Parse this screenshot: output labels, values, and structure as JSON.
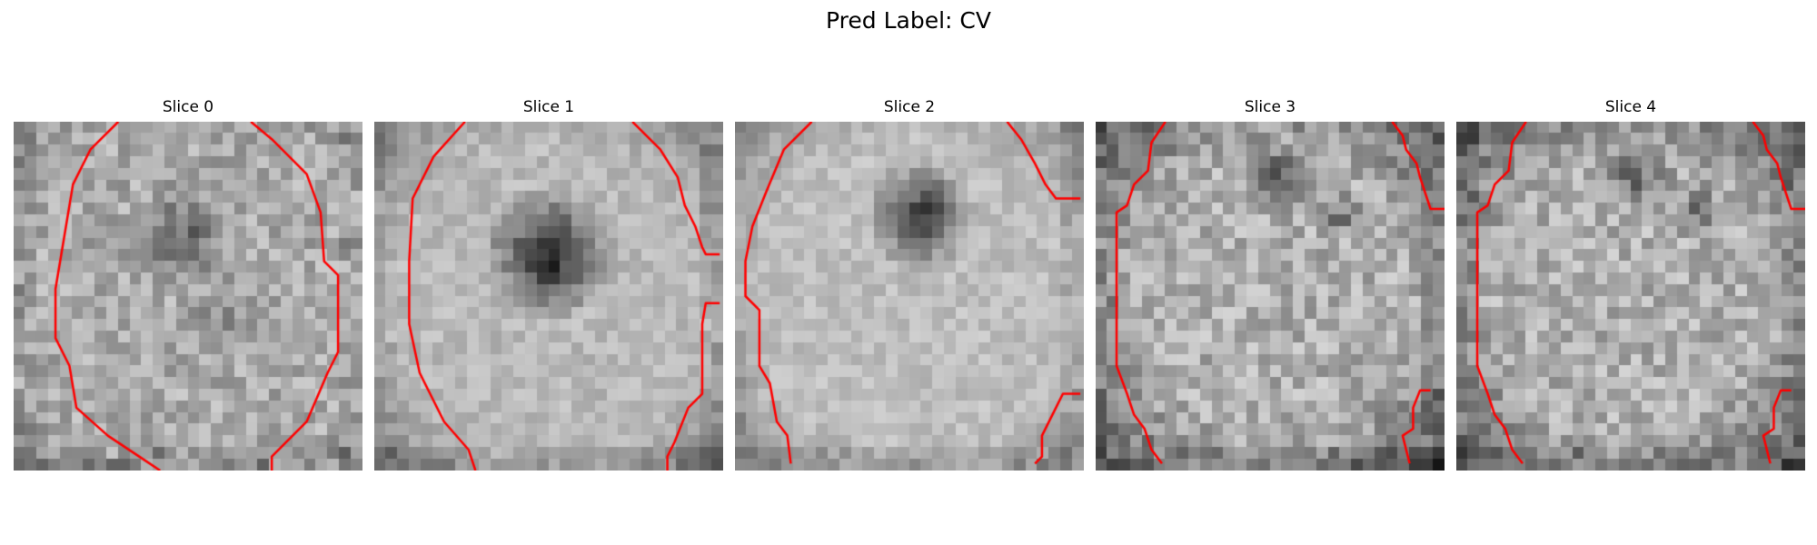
{
  "figure": {
    "title": "Pred Label: CV"
  },
  "panels": [
    {
      "title": "Slice 0",
      "icon": "mri-slice-image"
    },
    {
      "title": "Slice 1",
      "icon": "mri-slice-image"
    },
    {
      "title": "Slice 2",
      "icon": "mri-slice-image"
    },
    {
      "title": "Slice 3",
      "icon": "mri-slice-image"
    },
    {
      "title": "Slice 4",
      "icon": "mri-slice-image"
    }
  ],
  "colors": {
    "background": "#ffffff",
    "contour": "#ff0000",
    "image_colormap": "grayscale"
  }
}
